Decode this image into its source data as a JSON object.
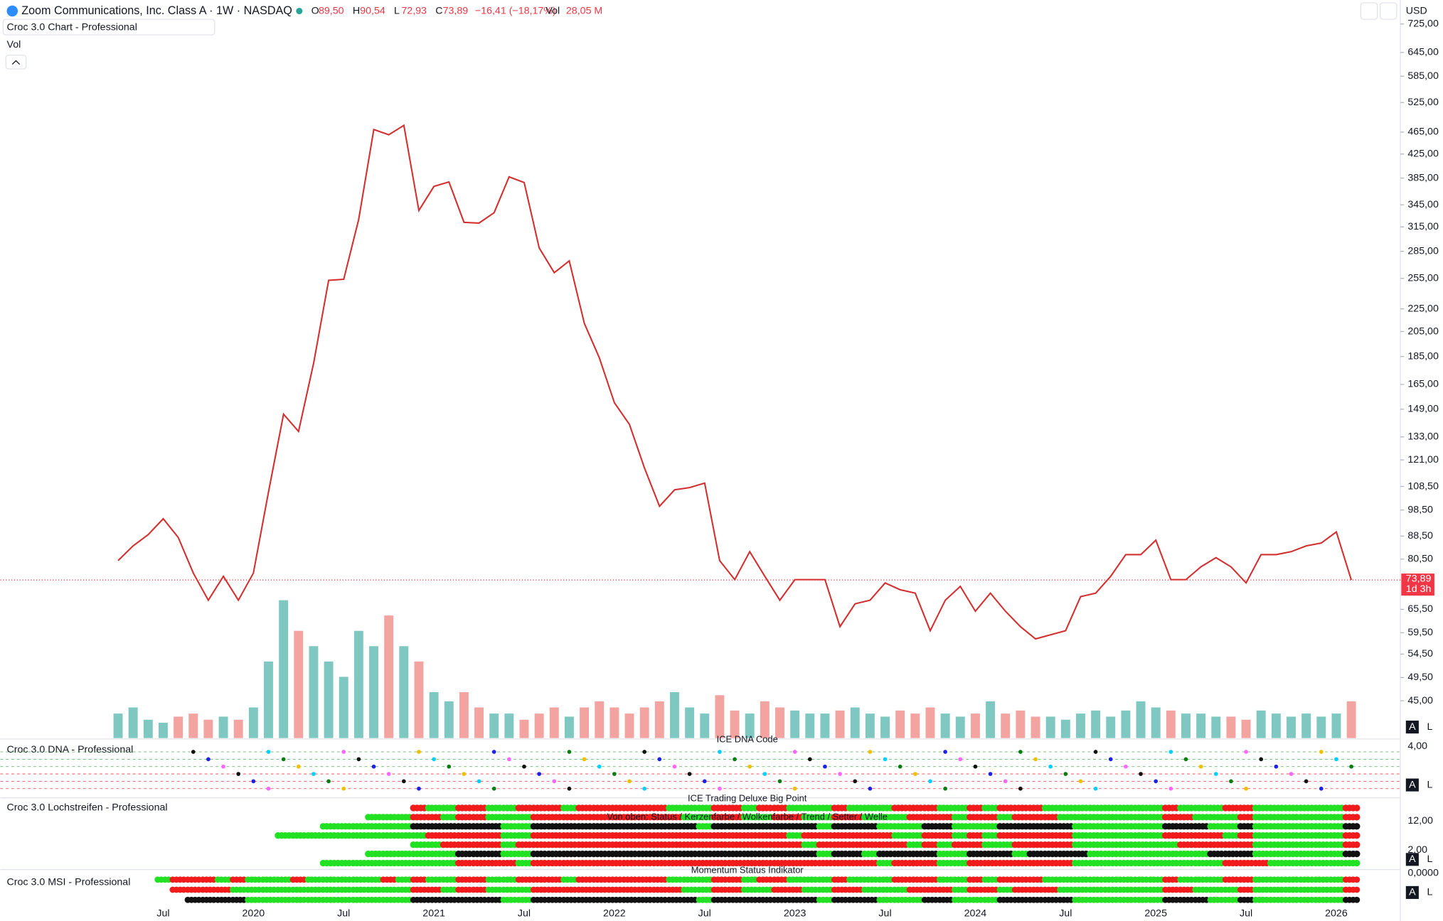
{
  "header": {
    "title": "Zoom Communications, Inc. Class A · 1W · NASDAQ",
    "ohlc": [
      {
        "key": "O",
        "value": "89,50"
      },
      {
        "key": "H",
        "value": "90,54"
      },
      {
        "key": "L",
        "value": "72,93"
      },
      {
        "key": "C",
        "value": "73,89"
      }
    ],
    "change": "−16,41 (−18,17%)",
    "vol_key": "Vol",
    "vol_value": "28,05 M",
    "indicator": "Croc 3.0 Chart - Professional",
    "vol_label": "Vol",
    "currency": "USD"
  },
  "chart_data": {
    "type": "line",
    "color": "#d32f2f",
    "log_scale": true,
    "categories": [
      null,
      null,
      null,
      "Jul",
      null,
      null,
      null,
      null,
      null,
      "2020",
      null,
      null,
      null,
      null,
      null,
      "Jul",
      null,
      null,
      null,
      null,
      null,
      "2021",
      null,
      null,
      null,
      null,
      null,
      "Jul",
      null,
      null,
      null,
      null,
      null,
      "2022",
      null,
      null,
      null,
      null,
      null,
      "Jul",
      null,
      null,
      null,
      null,
      null,
      "2023",
      null,
      null,
      null,
      null,
      null,
      "Jul",
      null,
      null,
      null,
      null,
      null,
      "2024",
      null,
      null,
      null,
      null,
      null,
      "Jul",
      null,
      null,
      null,
      null,
      null,
      "2025",
      null,
      null,
      null,
      null,
      null,
      "Jul",
      null,
      null,
      null,
      null,
      null,
      "2026",
      null
    ],
    "values": [
      80,
      85,
      89,
      95,
      88,
      76,
      68,
      75,
      68,
      76,
      106,
      146,
      136,
      180,
      253,
      254,
      325,
      470,
      460,
      478,
      337,
      372,
      379,
      321,
      320,
      334,
      387,
      378,
      289,
      261,
      274,
      212,
      184,
      153,
      140,
      117,
      100,
      107,
      108,
      110,
      80,
      74,
      83,
      75,
      68,
      74,
      74,
      74,
      61,
      67,
      68,
      73,
      71,
      70,
      60,
      68,
      72,
      65,
      70,
      65,
      61,
      58,
      59,
      60,
      69,
      70,
      75,
      82,
      82,
      87,
      74,
      74,
      78,
      81,
      78,
      73,
      82,
      82,
      83,
      85,
      86,
      90,
      73.89
    ],
    "volume": {
      "name": "Vol",
      "up_color": "#7fc8c2",
      "down_color": "#f3a3a0",
      "ylim": [
        0,
        60
      ],
      "values": [
        8,
        10,
        6,
        5,
        7,
        8,
        6,
        7,
        6,
        10,
        25,
        45,
        35,
        30,
        25,
        20,
        35,
        30,
        40,
        30,
        25,
        15,
        12,
        15,
        10,
        8,
        8,
        6,
        8,
        10,
        7,
        10,
        12,
        10,
        8,
        10,
        12,
        15,
        10,
        8,
        14,
        9,
        8,
        12,
        10,
        9,
        8,
        8,
        9,
        10,
        8,
        7,
        9,
        8,
        10,
        8,
        7,
        8,
        12,
        8,
        9,
        7,
        7,
        6,
        8,
        9,
        7,
        9,
        12,
        10,
        9,
        8,
        8,
        7,
        7,
        6,
        9,
        8,
        7,
        8,
        7,
        8,
        12
      ]
    },
    "ylim": [
      38.6,
      800
    ],
    "yticks": [
      {
        "value": 725,
        "label": "725,00"
      },
      {
        "value": 645,
        "label": "645,00"
      },
      {
        "value": 585,
        "label": "585,00"
      },
      {
        "value": 525,
        "label": "525,00"
      },
      {
        "value": 465,
        "label": "465,00"
      },
      {
        "value": 425,
        "label": "425,00"
      },
      {
        "value": 385,
        "label": "385,00"
      },
      {
        "value": 345,
        "label": "345,00"
      },
      {
        "value": 315,
        "label": "315,00"
      },
      {
        "value": 285,
        "label": "285,00"
      },
      {
        "value": 255,
        "label": "255,00"
      },
      {
        "value": 225,
        "label": "225,00"
      },
      {
        "value": 205,
        "label": "205,00"
      },
      {
        "value": 185,
        "label": "185,00"
      },
      {
        "value": 165,
        "label": "165,00"
      },
      {
        "value": 149,
        "label": "149,00"
      },
      {
        "value": 133,
        "label": "133,00"
      },
      {
        "value": 121,
        "label": "121,00"
      },
      {
        "value": 108.5,
        "label": "108,50"
      },
      {
        "value": 98.5,
        "label": "98,50"
      },
      {
        "value": 88.5,
        "label": "88,50"
      },
      {
        "value": 80.5,
        "label": "80,50"
      },
      {
        "value": 65.5,
        "label": "65,50"
      },
      {
        "value": 59.5,
        "label": "59,50"
      },
      {
        "value": 54.5,
        "label": "54,50"
      },
      {
        "value": 49.5,
        "label": "49,50"
      },
      {
        "value": 45,
        "label": "45,00"
      }
    ],
    "current_price": {
      "value": 73.89,
      "label": "73,89"
    },
    "countdown": "1d 3h"
  },
  "panels": [
    {
      "name": "Croc 3.0 DNA - Professional",
      "title": "ICE DNA Code",
      "tick": "4,00"
    },
    {
      "name": "Croc 3.0 Lochstreifen - Professional",
      "title": "ICE Trading Deluxe Big Point",
      "subtitle": "Von oben: Status / Kerzenfarbe / Wolkenfarbe / Trend / Setter / Welle",
      "tick": "12,00",
      "tick2": "2,00"
    },
    {
      "name": "Croc 3.0 MSI - Professional",
      "title": "Momentum Status Indikator",
      "tick": "0,0000"
    }
  ],
  "buttons": {
    "auto": "A",
    "log": "L"
  }
}
